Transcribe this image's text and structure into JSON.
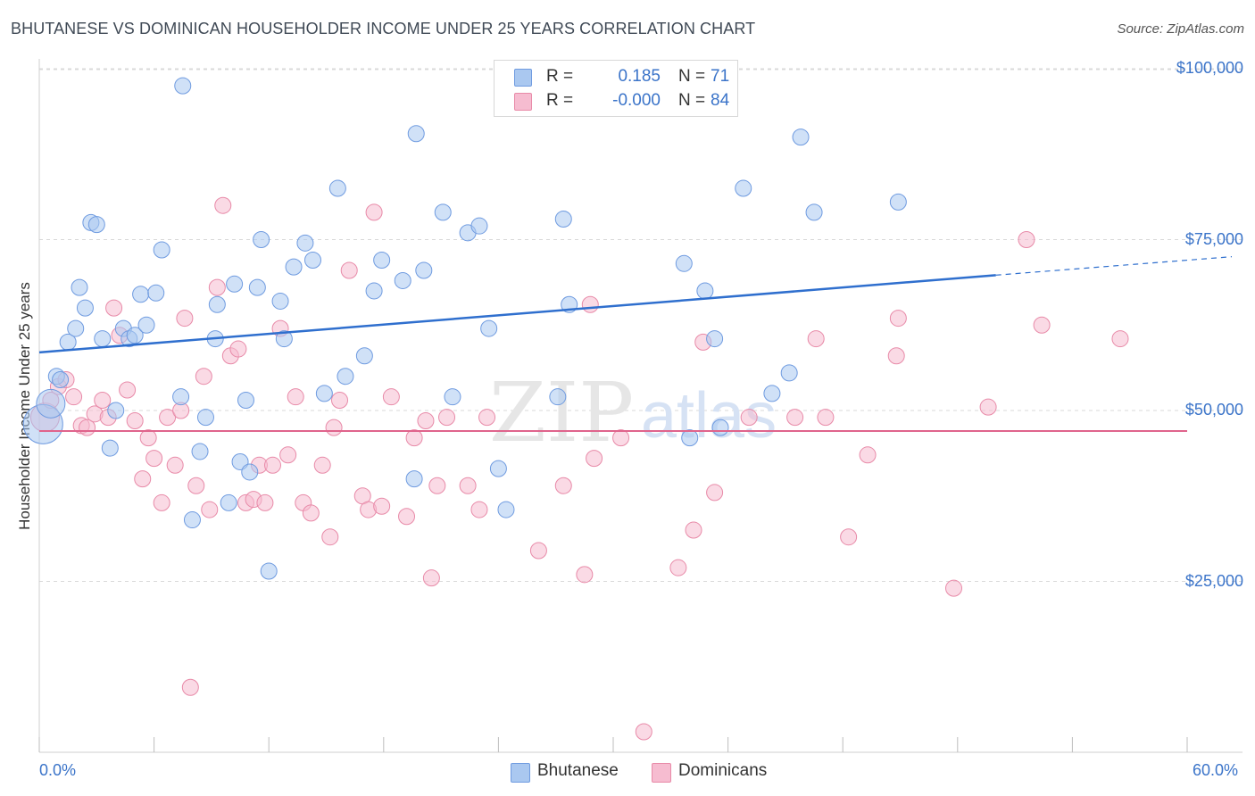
{
  "title": "BHUTANESE VS DOMINICAN HOUSEHOLDER INCOME UNDER 25 YEARS CORRELATION CHART",
  "source": "Source: ZipAtlas.com",
  "watermark_zip": "ZIP",
  "watermark_atlas": "atlas",
  "colors": {
    "blue_fill": "#aac8f0",
    "blue_stroke": "#6f9be0",
    "blue_line": "#2f6fce",
    "pink_fill": "#f6bcd0",
    "pink_stroke": "#e88aa8",
    "pink_line": "#e0648c",
    "grid": "#d9d9d9",
    "axis_text": "#3b74c9"
  },
  "legend_top": {
    "rows": [
      {
        "r_label": "R =",
        "r_value": "0.185",
        "n_label": "N =",
        "n_value": "71"
      },
      {
        "r_label": "R =",
        "r_value": "-0.000",
        "n_label": "N =",
        "n_value": "84"
      }
    ]
  },
  "legend_bottom": [
    "Bhutanese",
    "Dominicans"
  ],
  "chart_data": {
    "type": "scatter",
    "title": "BHUTANESE VS DOMINICAN HOUSEHOLDER INCOME UNDER 25 YEARS CORRELATION CHART",
    "xlabel": "",
    "ylabel": "Householder Income Under 25 years",
    "xlim": [
      0,
      60
    ],
    "ylim": [
      0,
      105000
    ],
    "x_tick_labels": [
      "0.0%",
      "60.0%"
    ],
    "y_ticks": [
      25000,
      50000,
      75000,
      100000
    ],
    "y_tick_labels": [
      "$25,000",
      "$50,000",
      "$75,000",
      "$100,000"
    ],
    "series": [
      {
        "name": "Bhutanese",
        "trend": {
          "x0": 0,
          "y0": 58500,
          "x1": 50,
          "y1": 69800,
          "dashed_to_x": 60,
          "dashed_to_y": 72100
        },
        "points": [
          [
            0.2,
            48000,
            3
          ],
          [
            0.6,
            51000,
            2
          ],
          [
            0.9,
            55000,
            1
          ],
          [
            1.1,
            54500,
            1
          ],
          [
            1.5,
            60000,
            1
          ],
          [
            1.9,
            62000,
            1
          ],
          [
            2.1,
            68000,
            1
          ],
          [
            2.4,
            65000,
            1
          ],
          [
            2.7,
            77500,
            1
          ],
          [
            3.0,
            77200,
            1
          ],
          [
            3.3,
            60500,
            1
          ],
          [
            3.7,
            44500,
            1
          ],
          [
            4.0,
            50000,
            1
          ],
          [
            4.4,
            62000,
            1
          ],
          [
            4.7,
            60500,
            1
          ],
          [
            5.0,
            61000,
            1
          ],
          [
            5.3,
            67000,
            1
          ],
          [
            5.6,
            62500,
            1
          ],
          [
            6.1,
            67200,
            1
          ],
          [
            6.4,
            73500,
            1
          ],
          [
            7.5,
            97500,
            1
          ],
          [
            7.4,
            52000,
            1
          ],
          [
            8.0,
            34000,
            1
          ],
          [
            8.4,
            44000,
            1
          ],
          [
            8.7,
            49000,
            1
          ],
          [
            9.2,
            60500,
            1
          ],
          [
            9.3,
            65500,
            1
          ],
          [
            9.9,
            36500,
            1
          ],
          [
            10.2,
            68500,
            1
          ],
          [
            10.5,
            42500,
            1
          ],
          [
            10.8,
            51500,
            1
          ],
          [
            11.0,
            41000,
            1
          ],
          [
            11.4,
            68000,
            1
          ],
          [
            11.6,
            75000,
            1
          ],
          [
            12.0,
            26500,
            1
          ],
          [
            12.6,
            66000,
            1
          ],
          [
            12.8,
            60500,
            1
          ],
          [
            13.3,
            71000,
            1
          ],
          [
            13.9,
            74500,
            1
          ],
          [
            14.3,
            72000,
            1
          ],
          [
            14.9,
            52500,
            1
          ],
          [
            15.6,
            82500,
            1
          ],
          [
            16.0,
            55000,
            1
          ],
          [
            17.0,
            58000,
            1
          ],
          [
            17.5,
            67500,
            1
          ],
          [
            17.9,
            72000,
            1
          ],
          [
            19.0,
            69000,
            1
          ],
          [
            19.6,
            40000,
            1
          ],
          [
            19.7,
            90500,
            1
          ],
          [
            20.1,
            70500,
            1
          ],
          [
            21.1,
            79000,
            1
          ],
          [
            21.6,
            52000,
            1
          ],
          [
            22.4,
            76000,
            1
          ],
          [
            23.0,
            77000,
            1
          ],
          [
            23.5,
            62000,
            1
          ],
          [
            24.0,
            41500,
            1
          ],
          [
            24.4,
            35500,
            1
          ],
          [
            27.1,
            52000,
            1
          ],
          [
            27.4,
            78000,
            1
          ],
          [
            27.7,
            65500,
            1
          ],
          [
            33.7,
            71500,
            1
          ],
          [
            34.0,
            46000,
            1
          ],
          [
            34.8,
            67500,
            1
          ],
          [
            35.3,
            60500,
            1
          ],
          [
            35.6,
            47500,
            1
          ],
          [
            36.8,
            82500,
            1
          ],
          [
            38.3,
            52500,
            1
          ],
          [
            39.2,
            55500,
            1
          ],
          [
            39.8,
            90000,
            1
          ],
          [
            40.5,
            79000,
            1
          ],
          [
            44.9,
            80500,
            1
          ]
        ]
      },
      {
        "name": "Dominicans",
        "trend": {
          "x0": 0,
          "y0": 47000,
          "x1": 60,
          "y1": 47000
        },
        "points": [
          [
            0.3,
            49000,
            2
          ],
          [
            0.6,
            51500,
            1
          ],
          [
            1.0,
            53500,
            1
          ],
          [
            1.4,
            54500,
            1
          ],
          [
            1.8,
            52000,
            1
          ],
          [
            2.2,
            47800,
            1
          ],
          [
            2.5,
            47500,
            1
          ],
          [
            2.9,
            49500,
            1
          ],
          [
            3.3,
            51500,
            1
          ],
          [
            3.6,
            49000,
            1
          ],
          [
            3.9,
            65000,
            1
          ],
          [
            4.2,
            61000,
            1
          ],
          [
            4.6,
            53000,
            1
          ],
          [
            5.0,
            48500,
            1
          ],
          [
            5.4,
            40000,
            1
          ],
          [
            5.7,
            46000,
            1
          ],
          [
            6.0,
            43000,
            1
          ],
          [
            6.4,
            36500,
            1
          ],
          [
            6.7,
            49000,
            1
          ],
          [
            7.1,
            42000,
            1
          ],
          [
            7.4,
            50000,
            1
          ],
          [
            7.6,
            63500,
            1
          ],
          [
            7.9,
            9500,
            1
          ],
          [
            8.2,
            39000,
            1
          ],
          [
            8.6,
            55000,
            1
          ],
          [
            8.9,
            35500,
            1
          ],
          [
            9.3,
            68000,
            1
          ],
          [
            9.6,
            80000,
            1
          ],
          [
            10.0,
            58000,
            1
          ],
          [
            10.4,
            59000,
            1
          ],
          [
            10.8,
            36500,
            1
          ],
          [
            11.2,
            37000,
            1
          ],
          [
            11.5,
            42000,
            1
          ],
          [
            11.8,
            36500,
            1
          ],
          [
            12.2,
            42000,
            1
          ],
          [
            12.6,
            62000,
            1
          ],
          [
            13.0,
            43500,
            1
          ],
          [
            13.4,
            52000,
            1
          ],
          [
            13.8,
            36500,
            1
          ],
          [
            14.2,
            35000,
            1
          ],
          [
            14.8,
            42000,
            1
          ],
          [
            15.2,
            31500,
            1
          ],
          [
            15.4,
            47500,
            1
          ],
          [
            15.7,
            51500,
            1
          ],
          [
            16.2,
            70500,
            1
          ],
          [
            16.9,
            37500,
            1
          ],
          [
            17.2,
            35500,
            1
          ],
          [
            17.5,
            79000,
            1
          ],
          [
            17.9,
            36000,
            1
          ],
          [
            18.4,
            52000,
            1
          ],
          [
            19.2,
            34500,
            1
          ],
          [
            19.6,
            46000,
            1
          ],
          [
            20.2,
            48500,
            1
          ],
          [
            20.5,
            25500,
            1
          ],
          [
            20.8,
            39000,
            1
          ],
          [
            21.3,
            49000,
            1
          ],
          [
            22.4,
            39000,
            1
          ],
          [
            23.0,
            35500,
            1
          ],
          [
            23.4,
            49000,
            1
          ],
          [
            25.3,
            94500,
            1
          ],
          [
            26.1,
            29500,
            1
          ],
          [
            27.4,
            39000,
            1
          ],
          [
            28.5,
            26000,
            1
          ],
          [
            28.8,
            65500,
            1
          ],
          [
            30.4,
            46000,
            1
          ],
          [
            31.6,
            3000,
            1
          ],
          [
            33.4,
            27000,
            1
          ],
          [
            34.2,
            32500,
            1
          ],
          [
            34.7,
            60000,
            1
          ],
          [
            35.3,
            38000,
            1
          ],
          [
            37.1,
            49000,
            1
          ],
          [
            39.5,
            49000,
            1
          ],
          [
            40.6,
            60500,
            1
          ],
          [
            41.1,
            49000,
            1
          ],
          [
            42.3,
            31500,
            1
          ],
          [
            43.3,
            43500,
            1
          ],
          [
            44.8,
            58000,
            1
          ],
          [
            44.9,
            63500,
            1
          ],
          [
            47.8,
            24000,
            1
          ],
          [
            49.6,
            50500,
            1
          ],
          [
            51.6,
            75000,
            1
          ],
          [
            52.4,
            62500,
            1
          ],
          [
            56.5,
            60500,
            1
          ],
          [
            29.0,
            43000,
            1
          ]
        ]
      }
    ]
  }
}
